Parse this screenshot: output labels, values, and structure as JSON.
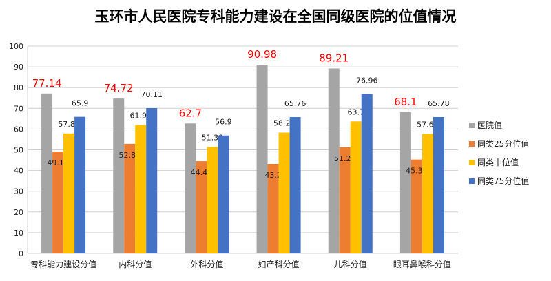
{
  "chart_data": {
    "type": "bar",
    "title": "玉环市人民医院专科能力建设在全国同级医院的位值情况",
    "xlabel": "",
    "ylabel": "",
    "ylim": [
      0,
      100
    ],
    "yticks": [
      0,
      10,
      20,
      30,
      40,
      50,
      60,
      70,
      80,
      90,
      100
    ],
    "grid": true,
    "legend_position": "right",
    "categories": [
      "专科能力建设分值",
      "内科分值",
      "外科分值",
      "妇产科分值",
      "儿科分值",
      "眼耳鼻喉科分值"
    ],
    "series": [
      {
        "name": "医院值",
        "color": "#a5a5a5",
        "label_color": "#ff0000",
        "values": [
          77.14,
          74.72,
          62.7,
          90.98,
          89.21,
          68.1
        ]
      },
      {
        "name": "同类25分位值",
        "color": "#ed7d31",
        "label_color": "#222222",
        "values": [
          49.16,
          52.86,
          44.48,
          43.2,
          51.24,
          45.31
        ]
      },
      {
        "name": "同类中位值",
        "color": "#ffc000",
        "label_color": "#222222",
        "values": [
          57.88,
          61.93,
          51.38,
          58.29,
          63.7,
          57.66
        ]
      },
      {
        "name": "同类75分位值",
        "color": "#4472c4",
        "label_color": "#222222",
        "values": [
          65.9,
          70.11,
          56.9,
          65.76,
          76.96,
          65.78
        ]
      }
    ]
  }
}
